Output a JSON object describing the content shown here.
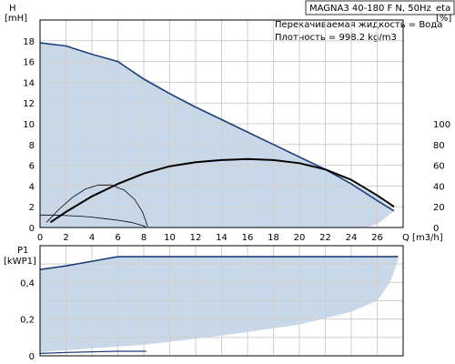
{
  "header": {
    "title": "MAGNA3 40-180 F N, 50Hz",
    "info_line1": "Перекачиваемая жидкость = Вода",
    "info_line2": "Плотность = 998.2 kg/m3"
  },
  "chart_data": [
    {
      "type": "line",
      "name": "head",
      "xlabel": "Q [m3/h]",
      "ylabel": "H",
      "yunit": "[mH]",
      "ylabel_right": "eta",
      "yunit_right": "[%]",
      "xlim": [
        0,
        28
      ],
      "ylim": [
        0,
        20
      ],
      "x_ticks": [
        0,
        2,
        4,
        6,
        8,
        10,
        12,
        14,
        16,
        18,
        20,
        22,
        24,
        26
      ],
      "y_ticks": [
        0,
        2,
        4,
        6,
        8,
        10,
        12,
        14,
        16,
        18
      ],
      "y_right_ticks": [
        0,
        20,
        40,
        60,
        80,
        100
      ],
      "y_right_scale": 10,
      "grid": true,
      "envelope": [
        [
          0,
          17.8
        ],
        [
          2,
          17.5
        ],
        [
          4,
          16.7
        ],
        [
          6,
          16.0
        ],
        [
          10,
          13.0
        ],
        [
          14,
          10.5
        ],
        [
          18,
          8.0
        ],
        [
          22,
          5.7
        ],
        [
          26,
          3.0
        ],
        [
          27.3,
          1.6
        ],
        [
          26,
          0.3
        ],
        [
          25,
          0
        ]
      ],
      "series": [
        {
          "name": "H max",
          "values": [
            [
              0,
              17.8
            ],
            [
              2,
              17.5
            ],
            [
              4,
              16.7
            ],
            [
              6,
              16.0
            ],
            [
              8,
              14.3
            ],
            [
              10,
              12.9
            ],
            [
              12,
              11.6
            ],
            [
              14,
              10.4
            ],
            [
              16,
              9.2
            ],
            [
              18,
              8.0
            ],
            [
              20,
              6.8
            ],
            [
              22,
              5.6
            ],
            [
              24,
              4.2
            ],
            [
              26,
              2.6
            ],
            [
              27.3,
              1.6
            ]
          ]
        },
        {
          "name": "eta max",
          "values": [
            [
              0.8,
              0.5
            ],
            [
              2,
              1.5
            ],
            [
              4,
              3.0
            ],
            [
              6,
              4.2
            ],
            [
              8,
              5.2
            ],
            [
              10,
              5.9
            ],
            [
              12,
              6.3
            ],
            [
              14,
              6.5
            ],
            [
              16,
              6.6
            ],
            [
              18,
              6.5
            ],
            [
              20,
              6.2
            ],
            [
              22,
              5.6
            ],
            [
              24,
              4.6
            ],
            [
              26,
              3.1
            ],
            [
              27.3,
              2.0
            ]
          ]
        },
        {
          "name": "eta min",
          "values": [
            [
              0.5,
              0.5
            ],
            [
              1.5,
              1.8
            ],
            [
              2.5,
              2.9
            ],
            [
              3.5,
              3.7
            ],
            [
              4.5,
              4.1
            ],
            [
              5.5,
              4.1
            ],
            [
              6.5,
              3.6
            ],
            [
              7.3,
              2.7
            ],
            [
              7.9,
              1.5
            ],
            [
              8.3,
              0.1
            ]
          ]
        },
        {
          "name": "H min",
          "values": [
            [
              0,
              1.2
            ],
            [
              1,
              1.2
            ],
            [
              2,
              1.15
            ],
            [
              3,
              1.1
            ],
            [
              4,
              1.0
            ],
            [
              5,
              0.85
            ],
            [
              6,
              0.7
            ],
            [
              7,
              0.5
            ],
            [
              8,
              0.15
            ],
            [
              8.2,
              0.0
            ]
          ]
        }
      ]
    },
    {
      "type": "line",
      "name": "power",
      "ylabel": "P1",
      "yunit": "[kWP1]",
      "xlim": [
        0,
        28
      ],
      "ylim": [
        0,
        0.6
      ],
      "y_ticks": [
        "0",
        "0,2",
        "0,4"
      ],
      "y_tick_values": [
        0,
        0.2,
        0.4
      ],
      "grid": true,
      "envelope": [
        [
          0,
          0.47
        ],
        [
          6,
          0.54
        ],
        [
          27.6,
          0.54
        ],
        [
          27.6,
          0.52
        ],
        [
          27,
          0.4
        ],
        [
          26,
          0.3
        ],
        [
          24,
          0.24
        ],
        [
          20,
          0.17
        ],
        [
          14,
          0.11
        ],
        [
          8,
          0.06
        ],
        [
          4,
          0.04
        ],
        [
          0,
          0.02
        ]
      ],
      "series": [
        {
          "name": "P1 max",
          "values": [
            [
              0,
              0.47
            ],
            [
              2,
              0.49
            ],
            [
              4,
              0.515
            ],
            [
              6,
              0.54
            ],
            [
              10,
              0.54
            ],
            [
              14,
              0.54
            ],
            [
              18,
              0.54
            ],
            [
              22,
              0.54
            ],
            [
              26,
              0.54
            ],
            [
              27.6,
              0.54
            ]
          ]
        },
        {
          "name": "P1 min",
          "values": [
            [
              0,
              0.013
            ],
            [
              2,
              0.018
            ],
            [
              4,
              0.022
            ],
            [
              6,
              0.025
            ],
            [
              8,
              0.025
            ],
            [
              8.2,
              0.025
            ]
          ]
        }
      ]
    }
  ]
}
